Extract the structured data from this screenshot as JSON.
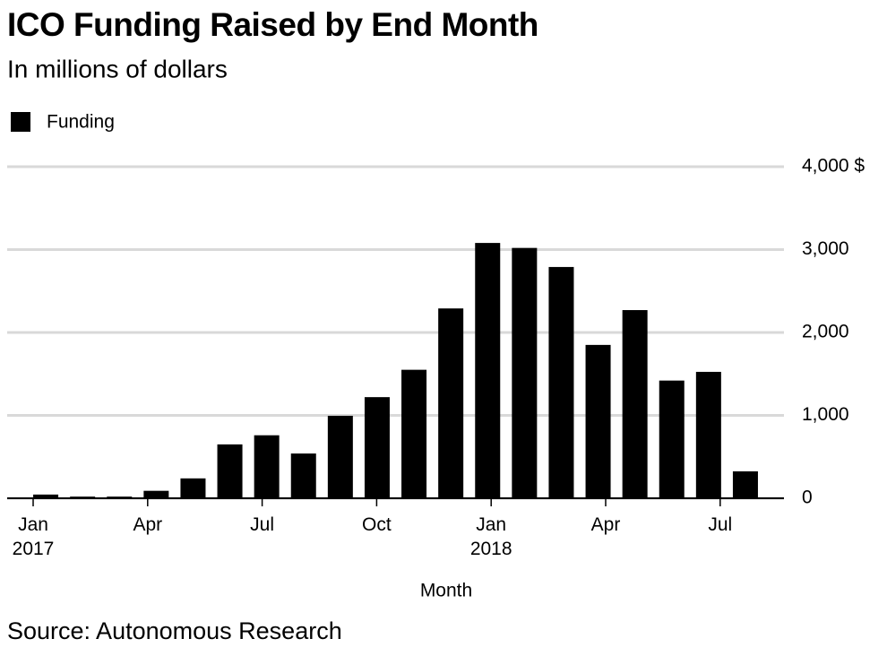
{
  "chart_data": {
    "type": "bar",
    "title": "ICO Funding Raised by End Month",
    "subtitle": "In millions of dollars",
    "legend": "Funding",
    "color": "#000000",
    "x_label": "Month",
    "source": "Source: Autonomous Research",
    "categories": [
      "Jan 2017",
      null,
      null,
      "Apr",
      null,
      null,
      "Jul",
      null,
      null,
      "Oct",
      null,
      null,
      "Jan 2018",
      null,
      null,
      "Apr",
      null,
      null,
      "Jul",
      null
    ],
    "values": [
      45,
      20,
      20,
      90,
      240,
      650,
      760,
      540,
      995,
      1220,
      1550,
      2290,
      3080,
      3020,
      2790,
      1850,
      2270,
      1420,
      1525,
      325
    ],
    "ylim": [
      0,
      4000
    ],
    "yticks": [
      0,
      {
        "value": 1000,
        "label": "1,000"
      },
      {
        "value": 2000,
        "label": "2,000"
      },
      {
        "value": 3000,
        "label": "3,000"
      },
      {
        "value": 4000,
        "label": "4,000 $"
      }
    ],
    "grid": true
  }
}
